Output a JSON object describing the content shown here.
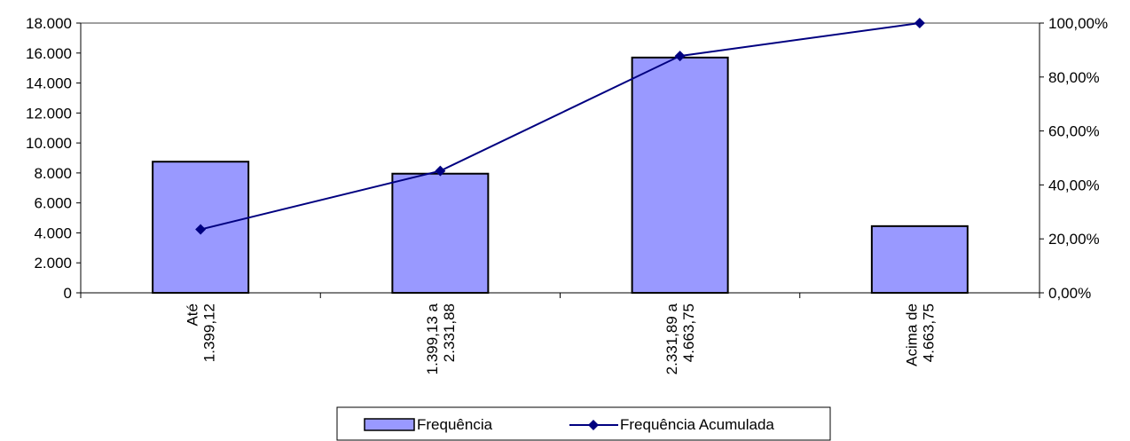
{
  "chart_data": {
    "type": "bar",
    "categories": [
      [
        "Até",
        "1.399,12"
      ],
      [
        "1.399,13 a",
        "2.331,88"
      ],
      [
        "2.331,89 a",
        "4.663,75"
      ],
      [
        "Acima de",
        "4.663,75"
      ]
    ],
    "series": [
      {
        "name": "Frequência",
        "type": "bar",
        "axis": "left",
        "values": [
          8750,
          7950,
          15700,
          4450
        ],
        "color": "#9999FF"
      },
      {
        "name": "Frequência Acumulada",
        "type": "line",
        "axis": "right",
        "values": [
          23.5,
          45.2,
          87.8,
          100.0
        ],
        "color": "#000080"
      }
    ],
    "y_left": {
      "min": 0,
      "max": 18000,
      "step": 2000,
      "tick_labels": [
        "0",
        "2.000",
        "4.000",
        "6.000",
        "8.000",
        "10.000",
        "12.000",
        "14.000",
        "16.000",
        "18.000"
      ]
    },
    "y_right": {
      "min": 0,
      "max": 100,
      "step": 20,
      "tick_labels": [
        "0,00%",
        "20,00%",
        "40,00%",
        "60,00%",
        "80,00%",
        "100,00%"
      ]
    },
    "title": "",
    "xlabel": "",
    "ylabel": "",
    "grid": false,
    "legend_position": "bottom"
  }
}
